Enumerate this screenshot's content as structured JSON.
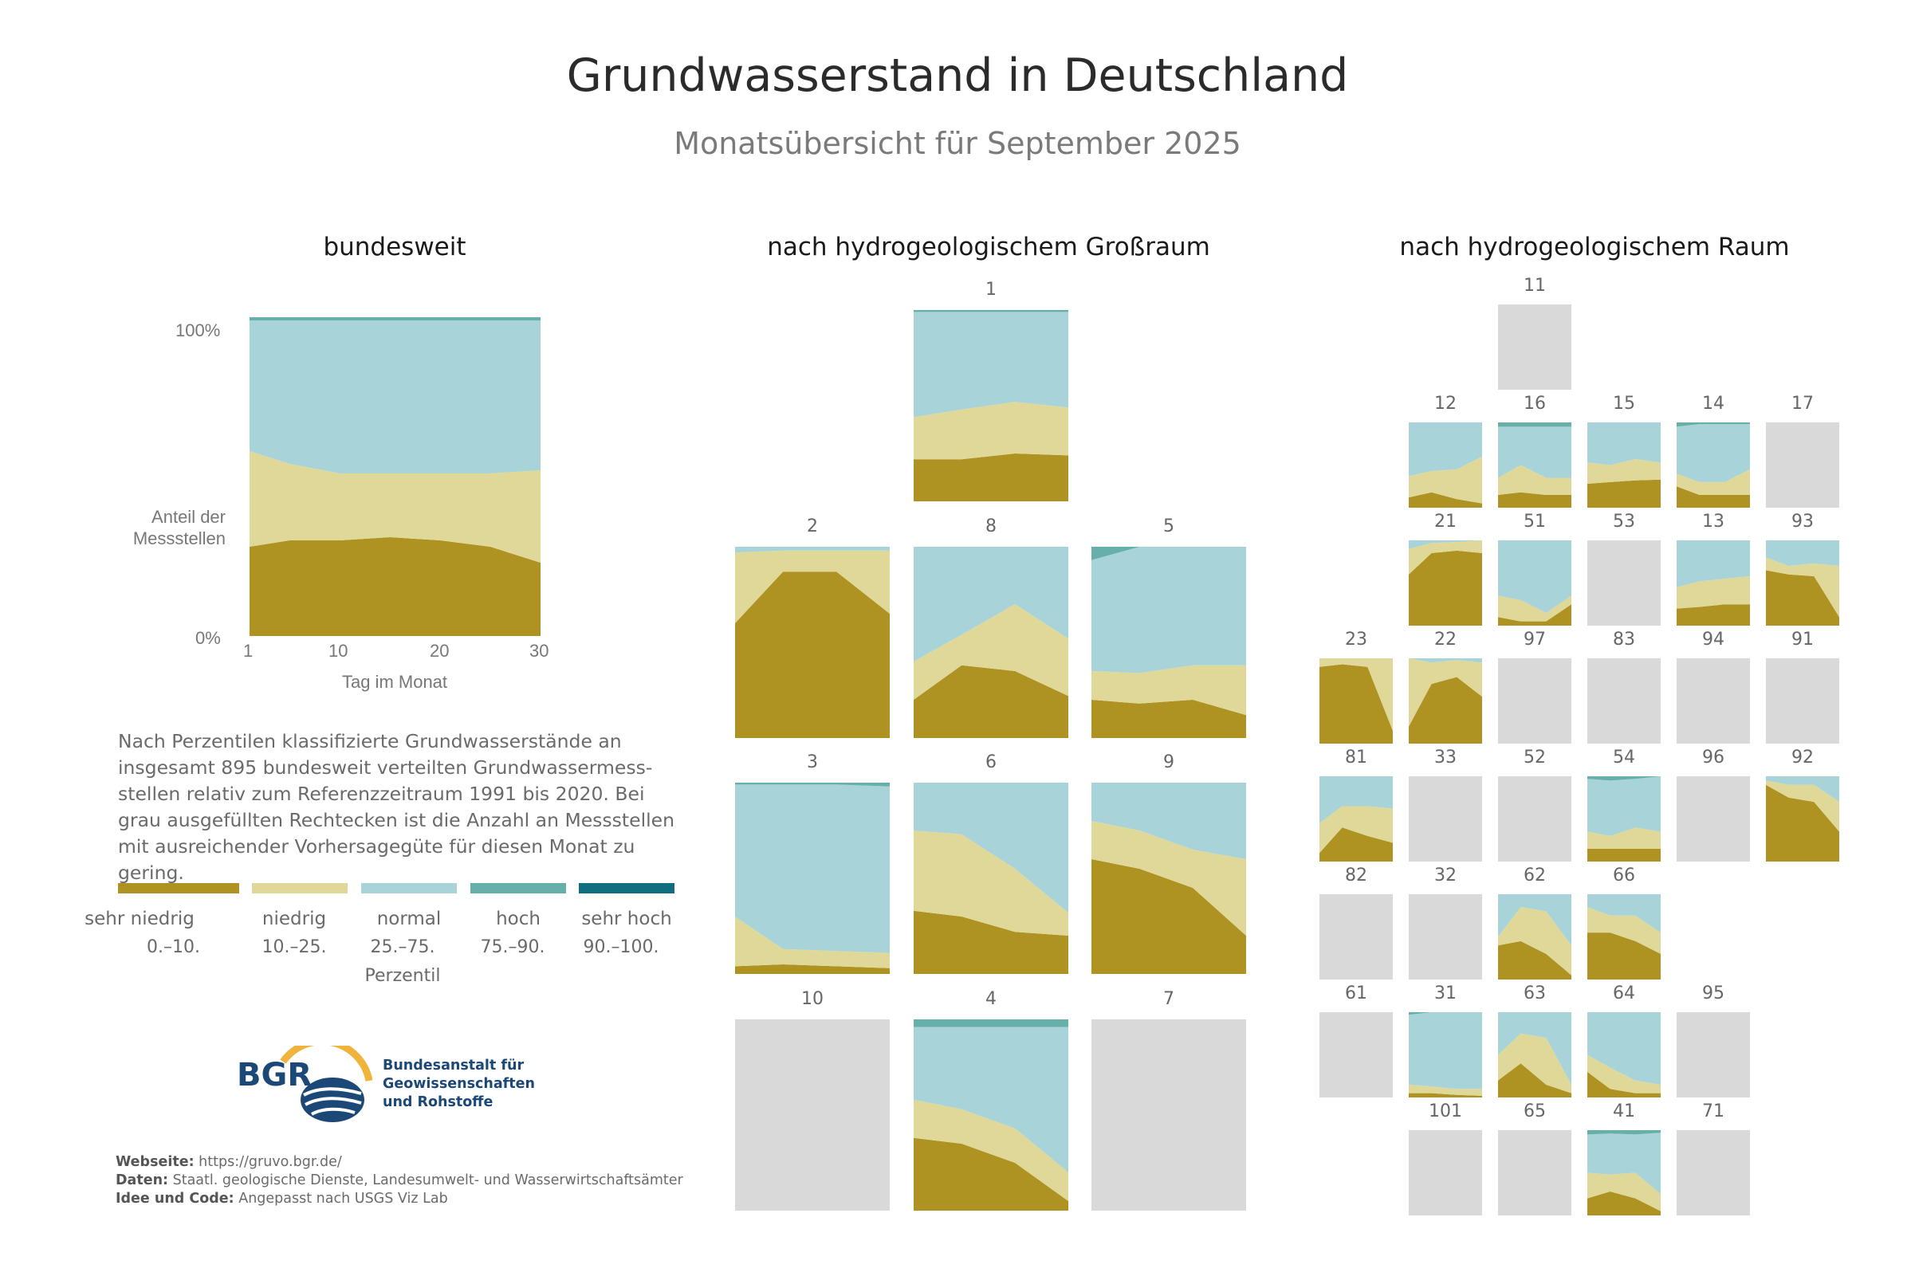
{
  "header": {
    "title": "Grundwasserstand in Deutschland",
    "subtitle": "Monatsübersicht für September 2025"
  },
  "sections": {
    "national": "bundesweit",
    "large_region": "nach hydrogeologischem Großraum",
    "region": "nach hydrogeologischem Raum"
  },
  "national_chart": {
    "y_top": "100%",
    "y_label_line1": "Anteil der",
    "y_label_line2": "Messstellen",
    "y_bottom": "0%",
    "x_ticks": [
      "1",
      "10",
      "20",
      "30"
    ],
    "x_label": "Tag im Monat"
  },
  "description": "Nach Perzentilen klassifizierte Grundwasserstände an insgesamt 895 bundesweit verteilten Grundwassermess-stellen relativ zum Referenzzeitraum 1991 bis 2020. Bei grau ausgefüllten Rechtecken ist die Anzahl an Messstellen mit ausreichender Vorhersagegüte für diesen Monat zu gering.",
  "legend": {
    "items": [
      {
        "label": "sehr  niedrig",
        "range": "0.–10.",
        "color": "#ae9322"
      },
      {
        "label": "niedrig",
        "range": "10.–25.",
        "color": "#e0d899"
      },
      {
        "label": "normal",
        "range": "25.–75.",
        "color": "#a8d3d8"
      },
      {
        "label": "hoch",
        "range": "75.–90.",
        "color": "#67b0aa"
      },
      {
        "label": "sehr  hoch",
        "range": "90.–100.",
        "color": "#106e80"
      }
    ],
    "axis_label": "Perzentil"
  },
  "logo": {
    "abbr": "BGR",
    "line1": "Bundesanstalt für",
    "line2": "Geowissenschaften",
    "line3": "und Rohstoffe"
  },
  "footer": {
    "website_label": "Webseite:",
    "website_value": " https://gruvo.bgr.de/",
    "data_label": "Daten:",
    "data_value": " Staatl. geologische Dienste, Landesumwelt- und Wasserwirtschaftsämter",
    "code_label": "Idee und Code:",
    "code_value": "  Angepasst nach USGS Viz Lab"
  },
  "colors": {
    "very_low": "#ae9322",
    "low": "#e0d899",
    "normal": "#a8d3d8",
    "high": "#67b0aa",
    "very_high": "#106e80",
    "insufficient": "#d9d9d9"
  },
  "chart_data": [
    {
      "type": "area",
      "name": "bundesweit",
      "x": [
        1,
        5,
        10,
        15,
        20,
        25,
        30
      ],
      "xlim": [
        1,
        30
      ],
      "ylim": [
        0,
        100
      ],
      "xlabel": "Tag im Monat",
      "ylabel": "Anteil der Messstellen",
      "stacked_percent": {
        "sehr niedrig": [
          28,
          30,
          30,
          31,
          30,
          28,
          23
        ],
        "niedrig": [
          30,
          24,
          21,
          20,
          21,
          23,
          29
        ],
        "normal": [
          41,
          45,
          48,
          48,
          48,
          48,
          47
        ],
        "hoch": [
          1,
          1,
          1,
          1,
          1,
          1,
          1
        ],
        "sehr hoch": [
          0,
          0,
          0,
          0,
          0,
          0,
          0
        ]
      }
    },
    {
      "type": "area",
      "name": "nach hydrogeologischem Großraum",
      "x": [
        1,
        10,
        20,
        30
      ],
      "panels": [
        {
          "id": "1",
          "insufficient": false,
          "sehr niedrig": [
            22,
            22,
            25,
            24
          ],
          "niedrig": [
            22,
            26,
            27,
            25
          ],
          "normal": [
            55,
            51,
            47,
            50
          ],
          "hoch": [
            1,
            1,
            1,
            1
          ],
          "sehr hoch": [
            0,
            0,
            0,
            0
          ]
        },
        {
          "id": "2",
          "insufficient": false,
          "sehr niedrig": [
            60,
            87,
            87,
            65
          ],
          "niedrig": [
            37,
            11,
            11,
            33
          ],
          "normal": [
            3,
            2,
            2,
            2
          ],
          "hoch": [
            0,
            0,
            0,
            0
          ],
          "sehr hoch": [
            0,
            0,
            0,
            0
          ]
        },
        {
          "id": "8",
          "insufficient": false,
          "sehr niedrig": [
            20,
            38,
            35,
            22
          ],
          "niedrig": [
            20,
            16,
            35,
            30
          ],
          "normal": [
            60,
            46,
            30,
            48
          ],
          "hoch": [
            0,
            0,
            0,
            0
          ],
          "sehr hoch": [
            0,
            0,
            0,
            0
          ]
        },
        {
          "id": "5",
          "insufficient": false,
          "sehr niedrig": [
            20,
            18,
            20,
            12
          ],
          "niedrig": [
            15,
            16,
            18,
            26
          ],
          "normal": [
            58,
            66,
            62,
            62
          ],
          "hoch": [
            7,
            0,
            0,
            0
          ],
          "sehr hoch": [
            0,
            0,
            0,
            0
          ]
        },
        {
          "id": "3",
          "insufficient": false,
          "sehr niedrig": [
            4,
            5,
            4,
            3
          ],
          "niedrig": [
            26,
            8,
            8,
            8
          ],
          "normal": [
            69,
            86,
            87,
            87
          ],
          "hoch": [
            1,
            1,
            1,
            2
          ],
          "sehr hoch": [
            0,
            0,
            0,
            0
          ]
        },
        {
          "id": "6",
          "insufficient": false,
          "sehr niedrig": [
            33,
            30,
            22,
            20
          ],
          "niedrig": [
            42,
            43,
            33,
            12
          ],
          "normal": [
            25,
            27,
            45,
            68
          ],
          "hoch": [
            0,
            0,
            0,
            0
          ],
          "sehr hoch": [
            0,
            0,
            0,
            0
          ]
        },
        {
          "id": "9",
          "insufficient": false,
          "sehr niedrig": [
            60,
            55,
            45,
            20
          ],
          "niedrig": [
            20,
            20,
            20,
            40
          ],
          "normal": [
            20,
            25,
            35,
            40
          ],
          "hoch": [
            0,
            0,
            0,
            0
          ],
          "sehr hoch": [
            0,
            0,
            0,
            0
          ]
        },
        {
          "id": "10",
          "insufficient": true
        },
        {
          "id": "4",
          "insufficient": false,
          "sehr niedrig": [
            38,
            35,
            25,
            5
          ],
          "niedrig": [
            20,
            18,
            18,
            15
          ],
          "normal": [
            38,
            43,
            53,
            76
          ],
          "hoch": [
            4,
            4,
            4,
            4
          ],
          "sehr hoch": [
            0,
            0,
            0,
            0
          ]
        },
        {
          "id": "7",
          "insufficient": true
        }
      ]
    },
    {
      "type": "area",
      "name": "nach hydrogeologischem Raum",
      "x": [
        1,
        10,
        20,
        30
      ],
      "panels": [
        {
          "id": "11",
          "insufficient": true
        },
        {
          "id": "12",
          "insufficient": false,
          "sehr niedrig": [
            12,
            18,
            10,
            5
          ],
          "niedrig": [
            25,
            25,
            35,
            55
          ],
          "normal": [
            63,
            57,
            55,
            40
          ],
          "hoch": [
            0,
            0,
            0,
            0
          ],
          "sehr hoch": [
            0,
            0,
            0,
            0
          ]
        },
        {
          "id": "16",
          "insufficient": false,
          "sehr niedrig": [
            15,
            18,
            15,
            15
          ],
          "niedrig": [
            20,
            32,
            20,
            20
          ],
          "normal": [
            60,
            45,
            60,
            60
          ],
          "hoch": [
            5,
            5,
            5,
            5
          ],
          "sehr hoch": [
            0,
            0,
            0,
            0
          ]
        },
        {
          "id": "15",
          "insufficient": false,
          "sehr niedrig": [
            28,
            30,
            32,
            33
          ],
          "niedrig": [
            25,
            20,
            25,
            20
          ],
          "normal": [
            47,
            50,
            43,
            47
          ],
          "hoch": [
            0,
            0,
            0,
            0
          ],
          "sehr hoch": [
            0,
            0,
            0,
            0
          ]
        },
        {
          "id": "14",
          "insufficient": false,
          "sehr niedrig": [
            25,
            15,
            15,
            15
          ],
          "niedrig": [
            15,
            15,
            15,
            30
          ],
          "normal": [
            55,
            68,
            68,
            53
          ],
          "hoch": [
            5,
            2,
            2,
            2
          ],
          "sehr hoch": [
            0,
            0,
            0,
            0
          ]
        },
        {
          "id": "17",
          "insufficient": true
        },
        {
          "id": "21",
          "insufficient": false,
          "sehr niedrig": [
            60,
            85,
            88,
            85
          ],
          "niedrig": [
            30,
            12,
            10,
            15
          ],
          "normal": [
            10,
            3,
            2,
            0
          ],
          "hoch": [
            0,
            0,
            0,
            0
          ],
          "sehr hoch": [
            0,
            0,
            0,
            0
          ]
        },
        {
          "id": "51",
          "insufficient": false,
          "sehr niedrig": [
            10,
            5,
            5,
            25
          ],
          "niedrig": [
            25,
            25,
            10,
            10
          ],
          "normal": [
            65,
            70,
            85,
            65
          ],
          "hoch": [
            0,
            0,
            0,
            0
          ],
          "sehr hoch": [
            0,
            0,
            0,
            0
          ]
        },
        {
          "id": "53",
          "insufficient": true
        },
        {
          "id": "13",
          "insufficient": false,
          "sehr niedrig": [
            20,
            22,
            25,
            25
          ],
          "niedrig": [
            25,
            30,
            30,
            33
          ],
          "normal": [
            55,
            48,
            45,
            42
          ],
          "hoch": [
            0,
            0,
            0,
            0
          ],
          "sehr hoch": [
            0,
            0,
            0,
            0
          ]
        },
        {
          "id": "93",
          "insufficient": false,
          "sehr niedrig": [
            65,
            60,
            58,
            10
          ],
          "niedrig": [
            15,
            10,
            15,
            60
          ],
          "normal": [
            20,
            30,
            27,
            30
          ],
          "hoch": [
            0,
            0,
            0,
            0
          ],
          "sehr hoch": [
            0,
            0,
            0,
            0
          ]
        },
        {
          "id": "23",
          "insufficient": false,
          "sehr niedrig": [
            90,
            93,
            90,
            15
          ],
          "niedrig": [
            10,
            7,
            10,
            85
          ],
          "normal": [
            0,
            0,
            0,
            0
          ],
          "hoch": [
            0,
            0,
            0,
            0
          ],
          "sehr hoch": [
            0,
            0,
            0,
            0
          ]
        },
        {
          "id": "22",
          "insufficient": false,
          "sehr niedrig": [
            20,
            70,
            78,
            55
          ],
          "niedrig": [
            80,
            25,
            20,
            40
          ],
          "normal": [
            0,
            5,
            2,
            5
          ],
          "hoch": [
            0,
            0,
            0,
            0
          ],
          "sehr hoch": [
            0,
            0,
            0,
            0
          ]
        },
        {
          "id": "97",
          "insufficient": true
        },
        {
          "id": "83",
          "insufficient": true
        },
        {
          "id": "94",
          "insufficient": true
        },
        {
          "id": "91",
          "insufficient": true
        },
        {
          "id": "81",
          "insufficient": false,
          "sehr niedrig": [
            10,
            40,
            30,
            22
          ],
          "niedrig": [
            35,
            25,
            35,
            40
          ],
          "normal": [
            55,
            35,
            35,
            38
          ],
          "hoch": [
            0,
            0,
            0,
            0
          ],
          "sehr hoch": [
            0,
            0,
            0,
            0
          ]
        },
        {
          "id": "33",
          "insufficient": true
        },
        {
          "id": "52",
          "insufficient": true
        },
        {
          "id": "54",
          "insufficient": false,
          "sehr niedrig": [
            15,
            15,
            15,
            15
          ],
          "niedrig": [
            20,
            15,
            25,
            20
          ],
          "normal": [
            62,
            65,
            57,
            65
          ],
          "hoch": [
            3,
            5,
            3,
            0
          ],
          "sehr hoch": [
            0,
            0,
            0,
            0
          ]
        },
        {
          "id": "96",
          "insufficient": true
        },
        {
          "id": "92",
          "insufficient": false,
          "sehr niedrig": [
            90,
            75,
            70,
            35
          ],
          "niedrig": [
            5,
            15,
            20,
            35
          ],
          "normal": [
            5,
            10,
            10,
            30
          ],
          "hoch": [
            0,
            0,
            0,
            0
          ],
          "sehr hoch": [
            0,
            0,
            0,
            0
          ]
        },
        {
          "id": "82",
          "insufficient": true
        },
        {
          "id": "32",
          "insufficient": true
        },
        {
          "id": "62",
          "insufficient": false,
          "sehr niedrig": [
            40,
            45,
            30,
            5
          ],
          "niedrig": [
            10,
            40,
            50,
            35
          ],
          "normal": [
            50,
            15,
            20,
            60
          ],
          "hoch": [
            0,
            0,
            0,
            0
          ],
          "sehr hoch": [
            0,
            0,
            0,
            0
          ]
        },
        {
          "id": "66",
          "insufficient": false,
          "sehr niedrig": [
            55,
            55,
            45,
            30
          ],
          "niedrig": [
            30,
            20,
            30,
            25
          ],
          "normal": [
            15,
            25,
            25,
            45
          ],
          "hoch": [
            0,
            0,
            0,
            0
          ],
          "sehr hoch": [
            0,
            0,
            0,
            0
          ]
        },
        {
          "id": "61",
          "insufficient": true
        },
        {
          "id": "31",
          "insufficient": false,
          "sehr niedrig": [
            5,
            5,
            3,
            2
          ],
          "niedrig": [
            10,
            8,
            7,
            8
          ],
          "normal": [
            82,
            87,
            90,
            90
          ],
          "hoch": [
            3,
            0,
            0,
            0
          ],
          "sehr hoch": [
            0,
            0,
            0,
            0
          ]
        },
        {
          "id": "63",
          "insufficient": false,
          "sehr niedrig": [
            20,
            40,
            15,
            5
          ],
          "niedrig": [
            30,
            35,
            55,
            10
          ],
          "normal": [
            50,
            25,
            30,
            85
          ],
          "hoch": [
            0,
            0,
            0,
            0
          ],
          "sehr hoch": [
            0,
            0,
            0,
            0
          ]
        },
        {
          "id": "64",
          "insufficient": false,
          "sehr niedrig": [
            30,
            10,
            5,
            5
          ],
          "niedrig": [
            20,
            25,
            15,
            10
          ],
          "normal": [
            50,
            65,
            80,
            85
          ],
          "hoch": [
            0,
            0,
            0,
            0
          ],
          "sehr hoch": [
            0,
            0,
            0,
            0
          ]
        },
        {
          "id": "95",
          "insufficient": true
        },
        {
          "id": "101",
          "insufficient": true
        },
        {
          "id": "65",
          "insufficient": true
        },
        {
          "id": "41",
          "insufficient": false,
          "sehr niedrig": [
            20,
            28,
            20,
            5
          ],
          "niedrig": [
            30,
            20,
            30,
            20
          ],
          "normal": [
            45,
            48,
            45,
            72
          ],
          "hoch": [
            5,
            4,
            5,
            3
          ],
          "sehr hoch": [
            0,
            0,
            0,
            0
          ]
        },
        {
          "id": "71",
          "insufficient": true
        }
      ]
    }
  ]
}
